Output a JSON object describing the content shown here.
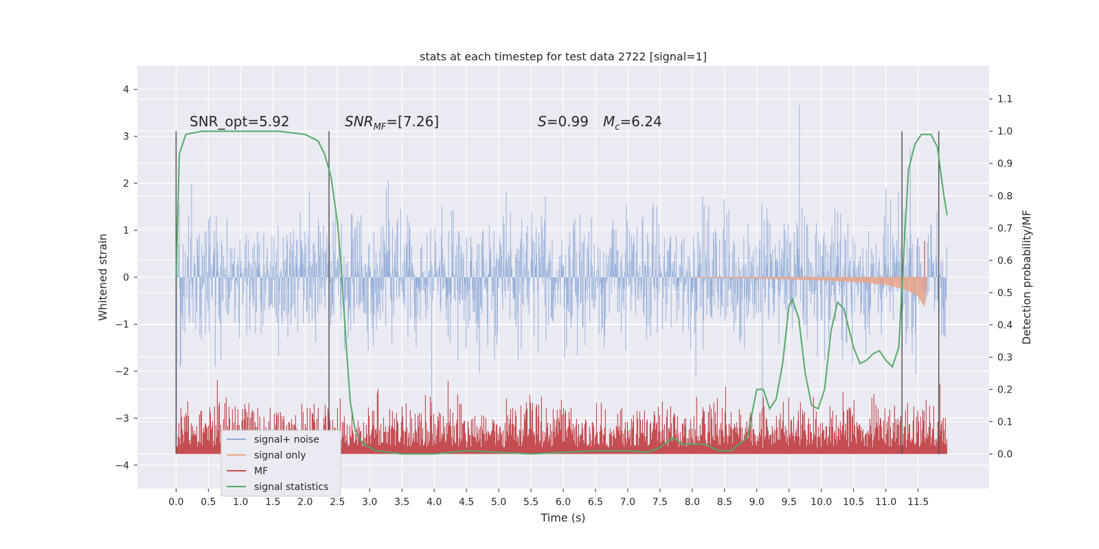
{
  "chart_data": {
    "type": "line",
    "title": "stats at each timestep for test data 2722 [signal=1]",
    "xlabel": "Time (s)",
    "ylabel": "Whitened strain",
    "y2label": "Detection probability/MF",
    "xlim": [
      -0.6,
      12.6
    ],
    "ylim": [
      -4.5,
      4.5
    ],
    "y2lim": [
      -0.1075,
      1.2025
    ],
    "xticks": [
      "0.0",
      "0.5",
      "1.0",
      "1.5",
      "2.0",
      "2.5",
      "3.0",
      "3.5",
      "4.0",
      "4.5",
      "5.0",
      "5.5",
      "6.0",
      "6.5",
      "7.0",
      "7.5",
      "8.0",
      "8.5",
      "9.0",
      "9.5",
      "10.0",
      "10.5",
      "11.0",
      "11.5"
    ],
    "yticks": [
      "4",
      "3",
      "2",
      "1",
      "0",
      "−1",
      "−2",
      "−3",
      "−4"
    ],
    "y2ticks": [
      "1.1",
      "1.0",
      "0.9",
      "0.8",
      "0.7",
      "0.6",
      "0.5",
      "0.4",
      "0.3",
      "0.2",
      "0.1",
      "0.0"
    ],
    "grid": true,
    "legend_position": "bottom-left",
    "annotations": [
      {
        "text": "SNR_opt=5.92"
      },
      {
        "text_main": "SNR",
        "text_sub": "MF",
        "text_tail": "=[7.26]"
      },
      {
        "text_main": "S",
        "text_tail": "=0.99"
      },
      {
        "text_main": "M",
        "text_sub": "c",
        "text_tail": "=6.24"
      }
    ],
    "vertical_lines_x": [
      0.0,
      2.37,
      11.25,
      11.82
    ],
    "series": [
      {
        "name": "signal+ noise",
        "color": "#8faad6",
        "kind": "noise",
        "x_range": [
          0.0,
          11.95
        ],
        "envelope": "approx. ±1.3 core, spikes to ±4.1"
      },
      {
        "name": "signal only",
        "color": "#e8a58a",
        "kind": "chirp",
        "x_start": 8.0,
        "x_end": 11.63,
        "y_values_at": [
          [
            8.0,
            0.0
          ],
          [
            9.0,
            -0.02
          ],
          [
            10.0,
            -0.06
          ],
          [
            10.5,
            -0.09
          ],
          [
            11.0,
            -0.15
          ],
          [
            11.3,
            -0.25
          ],
          [
            11.5,
            -0.4
          ],
          [
            11.6,
            -0.62
          ],
          [
            11.63,
            0.0
          ]
        ]
      },
      {
        "name": "MF",
        "color": "#c44e52",
        "kind": "band",
        "x_range": [
          0.0,
          11.95
        ],
        "base": 0.0,
        "top": 0.25,
        "axis": "y2"
      },
      {
        "name": "signal statistics",
        "color": "#55a868",
        "axis": "y2",
        "points": [
          [
            0.0,
            0.55
          ],
          [
            0.05,
            0.93
          ],
          [
            0.15,
            0.99
          ],
          [
            0.4,
            1.0
          ],
          [
            1.0,
            1.0
          ],
          [
            1.6,
            1.0
          ],
          [
            2.0,
            0.99
          ],
          [
            2.2,
            0.97
          ],
          [
            2.3,
            0.93
          ],
          [
            2.4,
            0.86
          ],
          [
            2.5,
            0.72
          ],
          [
            2.55,
            0.6
          ],
          [
            2.6,
            0.45
          ],
          [
            2.65,
            0.3
          ],
          [
            2.7,
            0.16
          ],
          [
            2.78,
            0.07
          ],
          [
            2.9,
            0.03
          ],
          [
            3.1,
            0.01
          ],
          [
            3.5,
            0.0
          ],
          [
            4.0,
            0.0
          ],
          [
            4.5,
            0.01
          ],
          [
            5.0,
            0.005
          ],
          [
            5.5,
            0.0
          ],
          [
            6.0,
            0.005
          ],
          [
            6.5,
            0.01
          ],
          [
            7.0,
            0.01
          ],
          [
            7.3,
            0.005
          ],
          [
            7.5,
            0.02
          ],
          [
            7.7,
            0.05
          ],
          [
            7.85,
            0.03
          ],
          [
            8.0,
            0.03
          ],
          [
            8.2,
            0.03
          ],
          [
            8.4,
            0.01
          ],
          [
            8.6,
            0.01
          ],
          [
            8.85,
            0.05
          ],
          [
            9.0,
            0.2
          ],
          [
            9.1,
            0.2
          ],
          [
            9.2,
            0.14
          ],
          [
            9.3,
            0.17
          ],
          [
            9.4,
            0.28
          ],
          [
            9.5,
            0.46
          ],
          [
            9.55,
            0.48
          ],
          [
            9.65,
            0.42
          ],
          [
            9.75,
            0.25
          ],
          [
            9.85,
            0.15
          ],
          [
            9.95,
            0.14
          ],
          [
            10.05,
            0.2
          ],
          [
            10.15,
            0.38
          ],
          [
            10.25,
            0.47
          ],
          [
            10.35,
            0.45
          ],
          [
            10.5,
            0.33
          ],
          [
            10.6,
            0.28
          ],
          [
            10.7,
            0.29
          ],
          [
            10.8,
            0.31
          ],
          [
            10.9,
            0.32
          ],
          [
            11.0,
            0.29
          ],
          [
            11.1,
            0.27
          ],
          [
            11.2,
            0.33
          ],
          [
            11.28,
            0.63
          ],
          [
            11.35,
            0.88
          ],
          [
            11.45,
            0.96
          ],
          [
            11.55,
            0.99
          ],
          [
            11.7,
            0.99
          ],
          [
            11.8,
            0.95
          ],
          [
            11.9,
            0.8
          ],
          [
            11.95,
            0.74
          ]
        ]
      }
    ]
  }
}
